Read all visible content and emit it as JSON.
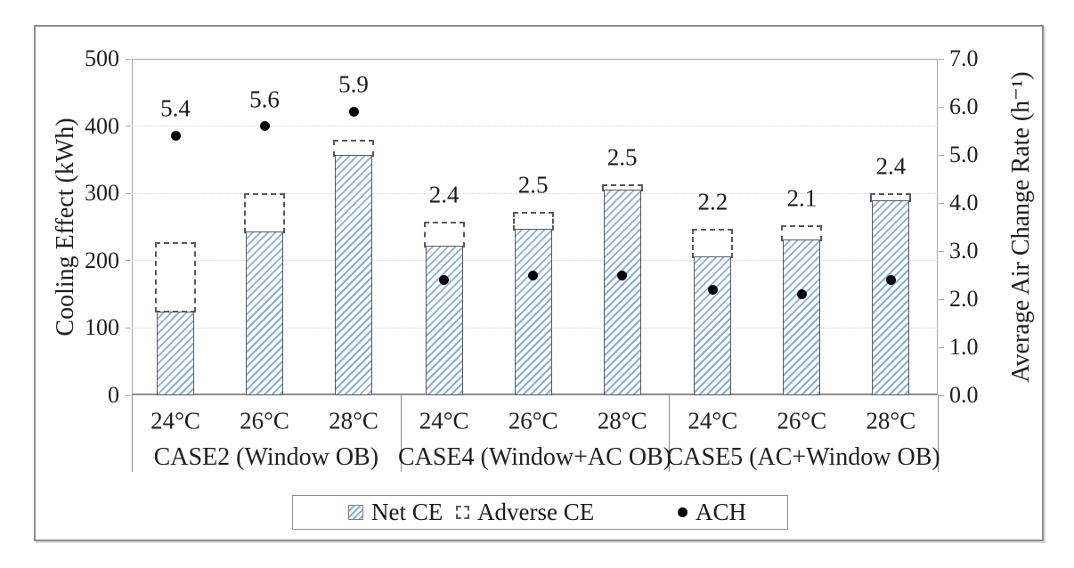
{
  "chart_data": {
    "type": "bar",
    "subtype": "stacked-bars-with-scatter-overlay",
    "title": "",
    "groups": [
      {
        "label": "CASE2 (Window OB)",
        "points": [
          {
            "temp": "24°C",
            "net_ce": 125,
            "adverse_ce": 103,
            "total_ce": 228,
            "ach": 5.4
          },
          {
            "temp": "26°C",
            "net_ce": 243,
            "adverse_ce": 57,
            "total_ce": 300,
            "ach": 5.6
          },
          {
            "temp": "28°C",
            "net_ce": 357,
            "adverse_ce": 23,
            "total_ce": 380,
            "ach": 5.9
          }
        ]
      },
      {
        "label": "CASE4 (Window+AC OB)",
        "points": [
          {
            "temp": "24°C",
            "net_ce": 222,
            "adverse_ce": 36,
            "total_ce": 258,
            "ach": 2.4
          },
          {
            "temp": "26°C",
            "net_ce": 248,
            "adverse_ce": 24,
            "total_ce": 272,
            "ach": 2.5
          },
          {
            "temp": "28°C",
            "net_ce": 305,
            "adverse_ce": 8,
            "total_ce": 313,
            "ach": 2.5
          }
        ]
      },
      {
        "label": "CASE5 (AC+Window OB)",
        "points": [
          {
            "temp": "24°C",
            "net_ce": 206,
            "adverse_ce": 41,
            "total_ce": 247,
            "ach": 2.2
          },
          {
            "temp": "26°C",
            "net_ce": 232,
            "adverse_ce": 21,
            "total_ce": 253,
            "ach": 2.1
          },
          {
            "temp": "28°C",
            "net_ce": 290,
            "adverse_ce": 10,
            "total_ce": 300,
            "ach": 2.4
          }
        ]
      }
    ],
    "series": [
      {
        "name": "Net CE",
        "type": "bar",
        "values": [
          125,
          243,
          357,
          222,
          248,
          305,
          206,
          232,
          290
        ]
      },
      {
        "name": "Adverse CE",
        "type": "bar",
        "values": [
          103,
          57,
          23,
          36,
          24,
          8,
          41,
          21,
          10
        ]
      },
      {
        "name": "ACH",
        "type": "scatter",
        "values": [
          5.4,
          5.6,
          5.9,
          2.4,
          2.5,
          2.5,
          2.2,
          2.1,
          2.4
        ]
      }
    ],
    "left_axis": {
      "title": "Cooling Effect (kWh)",
      "min": 0,
      "max": 500,
      "ticks": [
        "0",
        "100",
        "200",
        "300",
        "400",
        "500"
      ]
    },
    "right_axis": {
      "title": "Average Air Change Rate (h⁻¹)",
      "min": 0,
      "max": 7,
      "ticks": [
        "0.0",
        "1.0",
        "2.0",
        "3.0",
        "4.0",
        "5.0",
        "6.0",
        "7.0"
      ]
    },
    "legend": [
      {
        "name": "Net CE",
        "swatch": "hatched-bar-swatch"
      },
      {
        "name": "Adverse CE",
        "swatch": "dashed-box-swatch"
      },
      {
        "name": "ACH",
        "swatch": "black-dot-swatch"
      }
    ],
    "grid": "horizontal-dotted",
    "legend_position": "bottom-center"
  },
  "colors": {
    "hatch_blue": "#85aede",
    "bar_border": "#595959",
    "adverse_border": "#595959",
    "dot_black": "#000000",
    "gridline": "#d4d4d4",
    "axis_gray": "#a6a6a6",
    "frame_gray": "#8f8f8f",
    "text": "#1a1a1a"
  }
}
